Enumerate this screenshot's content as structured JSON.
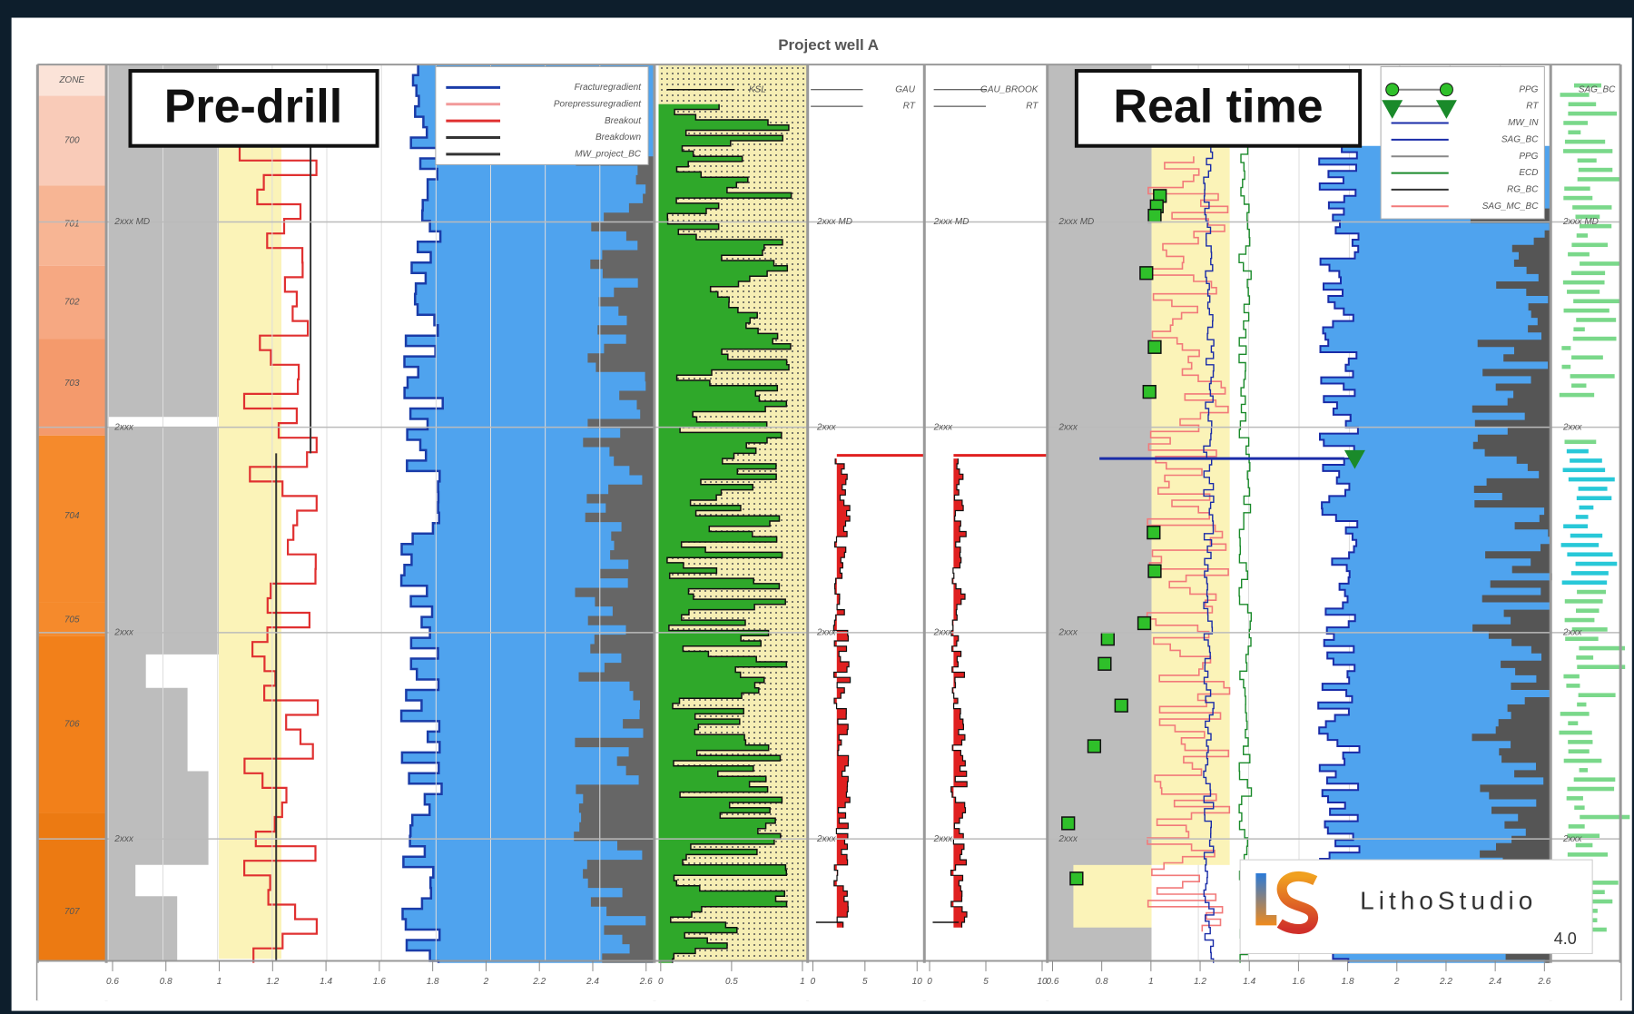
{
  "header": {
    "title": "Project well A"
  },
  "labels": {
    "predrill": "Pre-drill",
    "realtime": "Real time"
  },
  "depth_track": {
    "header": "ZONE",
    "depths": [
      "700",
      "701",
      "702",
      "703",
      "704",
      "705",
      "706",
      "707"
    ]
  },
  "markers": [
    "2xxx MD",
    "2xxx",
    "2xxx",
    "2xxx"
  ],
  "legend_predrill": [
    "Fracturegradient",
    "Porepressuregradient",
    "Breakout",
    "Breakdown",
    "MW_project_BC"
  ],
  "legend_realtime": [
    "PPG",
    "RT",
    "MW_IN",
    "SAG_BC",
    "PPG",
    "ECD",
    "RG_BC",
    "SAG_MC_BC"
  ],
  "track_headers": {
    "ksl": "KSL",
    "gau": [
      "GAU",
      "RT"
    ],
    "gau_brook": [
      "GAU_BROOK",
      "RT"
    ],
    "last": "SAG_BC"
  },
  "axes": {
    "predrill": [
      "0.6",
      "0.8",
      "1",
      "1.2",
      "1.4",
      "1.6",
      "1.8",
      "2",
      "2.2",
      "2.4",
      "2.6"
    ],
    "ksl": [
      "0",
      "0.5",
      "1"
    ],
    "gau": [
      "0",
      "5",
      "10"
    ],
    "gau_brook": [
      "0",
      "5",
      "10"
    ],
    "realtime": [
      "0.6",
      "0.8",
      "1",
      "1.2",
      "1.4",
      "1.6",
      "1.8",
      "2",
      "2.2",
      "2.4",
      "2.6"
    ]
  },
  "logo": {
    "name": "LithoStudio",
    "version": "4.0"
  }
}
